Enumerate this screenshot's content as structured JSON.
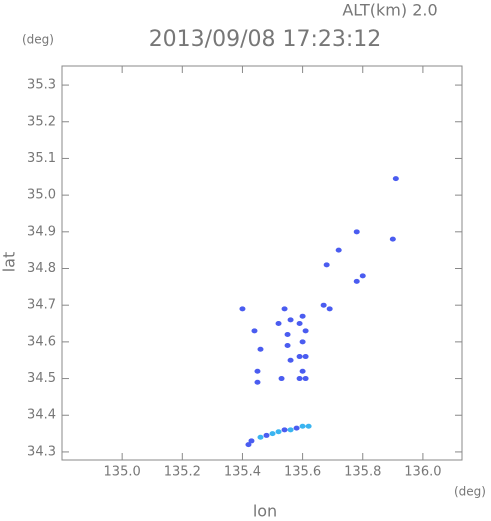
{
  "chart_data": {
    "type": "scatter",
    "altitude_label": "ALT(km) 2.0",
    "title": "2013/09/08 17:23:12",
    "y_unit": "(deg)",
    "x_unit": "(deg)",
    "xlabel": "lon",
    "ylabel": "lat",
    "xlim": [
      134.8,
      136.13
    ],
    "ylim": [
      34.278,
      35.352
    ],
    "xticks": [
      {
        "value": 135,
        "label": "135.0"
      },
      {
        "value": 135.2,
        "label": "135.2"
      },
      {
        "value": 135.4,
        "label": "135.4"
      },
      {
        "value": 135.6,
        "label": "135.6"
      },
      {
        "value": 135.8,
        "label": "135.8"
      },
      {
        "value": 136,
        "label": "136.0"
      }
    ],
    "yticks": [
      34.3,
      34.4,
      34.5,
      34.6,
      34.7,
      34.8,
      34.9,
      {
        "value": 35,
        "label": "35.0"
      },
      35.1,
      35.2,
      35.3
    ],
    "x": [
      135.91,
      135.9,
      135.78,
      135.72,
      135.68,
      135.8,
      135.78,
      135.4,
      135.67,
      135.69,
      135.54,
      135.52,
      135.56,
      135.6,
      135.59,
      135.44,
      135.61,
      135.55,
      135.46,
      135.55,
      135.6,
      135.59,
      135.61,
      135.56,
      135.45,
      135.45,
      135.6,
      135.59,
      135.53,
      135.61,
      135.42,
      135.43,
      135.46,
      135.48,
      135.5,
      135.52,
      135.54,
      135.56,
      135.58,
      135.6,
      135.62
    ],
    "y": [
      35.045,
      34.88,
      34.9,
      34.85,
      34.81,
      34.78,
      34.765,
      34.69,
      34.7,
      34.69,
      34.69,
      34.65,
      34.66,
      34.67,
      34.65,
      34.63,
      34.63,
      34.62,
      34.58,
      34.59,
      34.6,
      34.56,
      34.56,
      34.55,
      34.52,
      34.49,
      34.52,
      34.5,
      34.5,
      34.5,
      34.32,
      34.33,
      34.34,
      34.345,
      34.35,
      34.355,
      34.36,
      34.36,
      34.365,
      34.37,
      34.37
    ],
    "colors": [
      "#4a5cf0",
      "#4a5cf0",
      "#4a5cf0",
      "#4a5cf0",
      "#4a5cf0",
      "#4a5cf0",
      "#4a5cf0",
      "#4a5cf0",
      "#4a5cf0",
      "#4a5cf0",
      "#4a5cf0",
      "#4a5cf0",
      "#4a5cf0",
      "#4a5cf0",
      "#4a5cf0",
      "#4a5cf0",
      "#4a5cf0",
      "#4a5cf0",
      "#4a5cf0",
      "#4a5cf0",
      "#4a5cf0",
      "#4a5cf0",
      "#4a5cf0",
      "#4a5cf0",
      "#4a5cf0",
      "#4a5cf0",
      "#4a5cf0",
      "#4a5cf0",
      "#4a5cf0",
      "#4a5cf0",
      "#4a5cf0",
      "#4a5cf0",
      "#3ab4f0",
      "#4a5cf0",
      "#3ab4f0",
      "#3ab4f0",
      "#4a5cf0",
      "#3ab4f0",
      "#4a5cf0",
      "#3ab4f0",
      "#3ab4f0"
    ]
  }
}
